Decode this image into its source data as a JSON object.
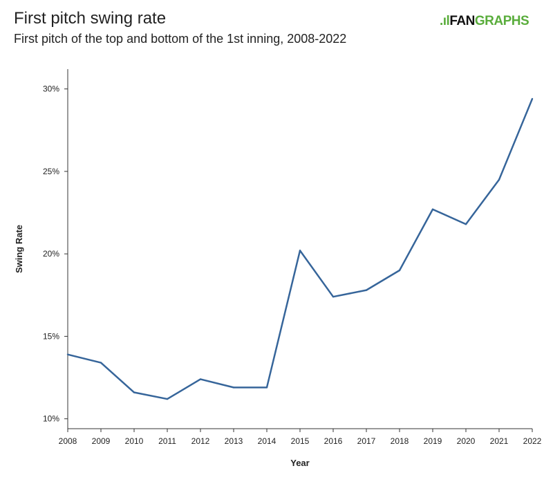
{
  "header": {
    "title": "First pitch swing rate",
    "subtitle": "First pitch of the top and bottom of the 1st inning, 2008-2022",
    "logo_text": "FANGRAPHS"
  },
  "colors": {
    "line": "#36659a",
    "logo_green": "#5aad3c",
    "axis": "#333333"
  },
  "chart_data": {
    "type": "line",
    "title": "First pitch swing rate",
    "subtitle": "First pitch of the top and bottom of the 1st inning, 2008-2022",
    "xlabel": "Year",
    "ylabel": "Swing Rate",
    "x": [
      2008,
      2009,
      2010,
      2011,
      2012,
      2013,
      2014,
      2015,
      2016,
      2017,
      2018,
      2019,
      2020,
      2021,
      2022
    ],
    "values": [
      13.9,
      13.4,
      11.6,
      11.2,
      12.4,
      11.9,
      11.9,
      20.2,
      17.4,
      17.8,
      19.0,
      22.7,
      21.8,
      24.5,
      29.4
    ],
    "yticks": [
      10,
      15,
      20,
      25,
      30
    ],
    "ytick_labels": [
      "10%",
      "15%",
      "20%",
      "25%",
      "30%"
    ],
    "xtick_labels": [
      "2008",
      "2009",
      "2010",
      "2011",
      "2012",
      "2013",
      "2014",
      "2015",
      "2016",
      "2017",
      "2018",
      "2019",
      "2020",
      "2021",
      "2022"
    ],
    "ylim": [
      9.4,
      31.2
    ],
    "xlim": [
      2008,
      2022
    ],
    "grid": false,
    "legend": "none"
  }
}
